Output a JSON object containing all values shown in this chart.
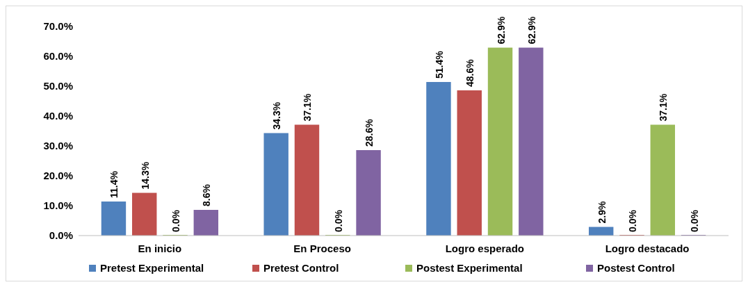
{
  "chart_data": {
    "type": "bar",
    "categories": [
      "En inicio",
      "En Proceso",
      "Logro esperado",
      "Logro destacado"
    ],
    "series": [
      {
        "name": "Pretest Experimental",
        "color": "#4f81bd",
        "values": [
          11.4,
          34.3,
          51.4,
          2.9
        ],
        "value_labels": [
          "11.4%",
          "34.3%",
          "51.4%",
          "2.9%"
        ]
      },
      {
        "name": "Pretest Control",
        "color": "#c0504d",
        "values": [
          14.3,
          37.1,
          48.6,
          0.0
        ],
        "value_labels": [
          "14.3%",
          "37.1%",
          "48.6%",
          "0.0%"
        ]
      },
      {
        "name": "Postest Experimental",
        "color": "#9bbb59",
        "values": [
          0.0,
          0.0,
          62.9,
          37.1
        ],
        "value_labels": [
          "0.0%",
          "0.0%",
          "62.9%",
          "37.1%"
        ]
      },
      {
        "name": "Postest Control",
        "color": "#8064a2",
        "values": [
          8.6,
          28.6,
          62.9,
          0.0
        ],
        "value_labels": [
          "8.6%",
          "28.6%",
          "62.9%",
          "0.0%"
        ]
      }
    ],
    "ylim": [
      0,
      70
    ],
    "yticks": [
      {
        "value": 0,
        "label": "0.0%"
      },
      {
        "value": 10,
        "label": "10.0%"
      },
      {
        "value": 20,
        "label": "20.0%"
      },
      {
        "value": 30,
        "label": "30.0%"
      },
      {
        "value": 40,
        "label": "40.0%"
      },
      {
        "value": 50,
        "label": "50.0%"
      },
      {
        "value": 60,
        "label": "60.0%"
      },
      {
        "value": 70,
        "label": "70.0%"
      }
    ],
    "grid": false,
    "legend": "bottom"
  }
}
